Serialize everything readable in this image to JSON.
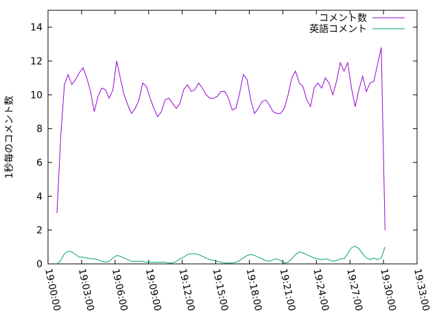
{
  "chart_data": {
    "type": "line",
    "y_label": "1秒毎のコメント数",
    "x": [
      "19:00:48",
      "19:01:08",
      "19:01:28",
      "19:01:48",
      "19:02:08",
      "19:02:28",
      "19:02:48",
      "19:03:08",
      "19:03:28",
      "19:03:48",
      "19:04:08",
      "19:04:28",
      "19:04:48",
      "19:05:08",
      "19:05:28",
      "19:05:48",
      "19:06:08",
      "19:06:28",
      "19:06:48",
      "19:07:08",
      "19:07:28",
      "19:07:48",
      "19:08:08",
      "19:08:28",
      "19:08:48",
      "19:09:08",
      "19:09:28",
      "19:09:48",
      "19:10:08",
      "19:10:28",
      "19:10:48",
      "19:11:08",
      "19:11:28",
      "19:11:48",
      "19:12:08",
      "19:12:28",
      "19:12:48",
      "19:13:08",
      "19:13:28",
      "19:13:48",
      "19:14:08",
      "19:14:28",
      "19:14:48",
      "19:15:08",
      "19:15:28",
      "19:15:48",
      "19:16:08",
      "19:16:28",
      "19:16:48",
      "19:17:08",
      "19:17:28",
      "19:17:48",
      "19:18:08",
      "19:18:28",
      "19:18:48",
      "19:19:08",
      "19:19:28",
      "19:19:48",
      "19:20:08",
      "19:20:28",
      "19:20:48",
      "19:21:08",
      "19:21:28",
      "19:21:48",
      "19:22:08",
      "19:22:28",
      "19:22:48",
      "19:23:08",
      "19:23:28",
      "19:23:48",
      "19:24:08",
      "19:24:28",
      "19:24:48",
      "19:25:08",
      "19:25:28",
      "19:25:48",
      "19:26:08",
      "19:26:28",
      "19:26:48",
      "19:27:08",
      "19:27:28",
      "19:27:48",
      "19:28:08",
      "19:28:28",
      "19:28:48",
      "19:29:08",
      "19:29:28",
      "19:29:48",
      "19:30:08"
    ],
    "series": [
      {
        "name": "コメント数",
        "color": "#9400d3",
        "values": [
          3.0,
          7.5,
          10.6,
          11.2,
          10.6,
          10.9,
          11.3,
          11.6,
          11.0,
          10.2,
          9.0,
          9.9,
          10.4,
          10.3,
          9.8,
          10.3,
          12.0,
          11.0,
          10.0,
          9.4,
          8.9,
          9.2,
          9.7,
          10.7,
          10.5,
          9.8,
          9.2,
          8.7,
          9.0,
          9.7,
          9.8,
          9.5,
          9.2,
          9.5,
          10.3,
          10.6,
          10.2,
          10.3,
          10.7,
          10.4,
          10.0,
          9.8,
          9.8,
          9.9,
          10.2,
          10.2,
          9.8,
          9.1,
          9.2,
          10.1,
          11.2,
          10.9,
          9.7,
          8.9,
          9.2,
          9.6,
          9.7,
          9.4,
          9.0,
          8.9,
          8.9,
          9.2,
          10.0,
          11.0,
          11.4,
          10.7,
          10.5,
          9.7,
          9.3,
          10.4,
          10.7,
          10.4,
          11.0,
          10.7,
          10.0,
          10.8,
          11.9,
          11.4,
          11.9,
          10.4,
          9.3,
          10.3,
          11.1,
          10.2,
          10.7,
          10.8,
          11.8,
          12.8,
          2.0
        ]
      },
      {
        "name": "英語コメント",
        "color": "#009e73",
        "values": [
          0.0,
          0.2,
          0.6,
          0.75,
          0.7,
          0.55,
          0.4,
          0.4,
          0.35,
          0.3,
          0.3,
          0.25,
          0.15,
          0.1,
          0.15,
          0.35,
          0.5,
          0.45,
          0.35,
          0.25,
          0.15,
          0.15,
          0.15,
          0.15,
          0.1,
          0.1,
          0.1,
          0.1,
          0.1,
          0.1,
          0.05,
          0.05,
          0.15,
          0.3,
          0.4,
          0.55,
          0.6,
          0.6,
          0.55,
          0.45,
          0.35,
          0.25,
          0.2,
          0.15,
          0.1,
          0.05,
          0.05,
          0.05,
          0.1,
          0.2,
          0.35,
          0.5,
          0.55,
          0.5,
          0.4,
          0.3,
          0.2,
          0.15,
          0.25,
          0.3,
          0.2,
          0.05,
          0.1,
          0.3,
          0.55,
          0.7,
          0.65,
          0.55,
          0.45,
          0.35,
          0.3,
          0.25,
          0.3,
          0.25,
          0.15,
          0.2,
          0.3,
          0.3,
          0.6,
          0.95,
          1.05,
          0.9,
          0.6,
          0.35,
          0.25,
          0.35,
          0.25,
          0.35,
          1.0
        ]
      }
    ],
    "xlim": [
      "19:00:00",
      "19:33:00"
    ],
    "xticks": [
      "19:00:00",
      "19:03:00",
      "19:06:00",
      "19:09:00",
      "19:12:00",
      "19:15:00",
      "19:18:00",
      "19:21:00",
      "19:24:00",
      "19:27:00",
      "19:30:00",
      "19:33:00"
    ],
    "ylim": [
      0,
      15
    ],
    "yticks": [
      0,
      2,
      4,
      6,
      8,
      10,
      12,
      14
    ],
    "grid": false,
    "legend": "top-right"
  }
}
